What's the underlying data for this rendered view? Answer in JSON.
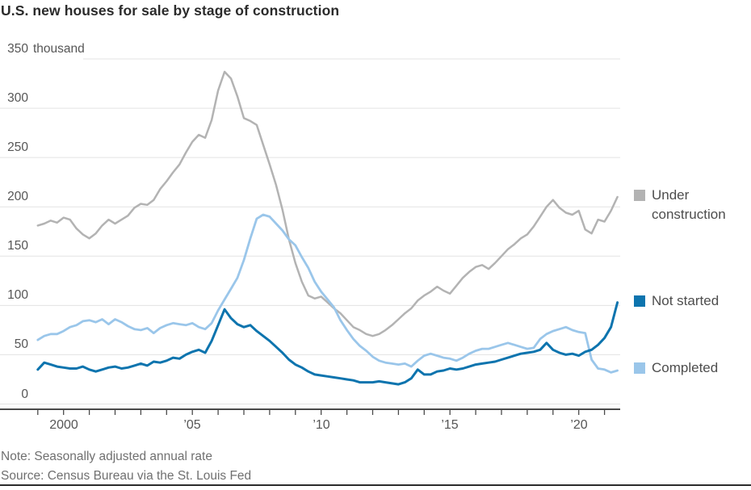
{
  "title": "U.S. new houses for sale by stage of construction",
  "note": "Note: Seasonally adjusted annual rate",
  "source": "Source: Census Bureau via the St. Louis Fed",
  "y_axis": {
    "unit_label": "thousand",
    "ticks": [
      350,
      300,
      250,
      200,
      150,
      100,
      50,
      0
    ]
  },
  "x_axis": {
    "labeled_ticks": [
      {
        "year": 2000,
        "label": "2000"
      },
      {
        "year": 2005,
        "label": "’05"
      },
      {
        "year": 2010,
        "label": "’10"
      },
      {
        "year": 2015,
        "label": "’15"
      },
      {
        "year": 2020,
        "label": "’20"
      }
    ],
    "minor_tick_start": 1999,
    "minor_tick_end": 2021
  },
  "colors": {
    "under_construction": "#b3b3b3",
    "not_started": "#0d74ae",
    "completed": "#9ac6ea",
    "gridline": "#e3e3e3",
    "axis": "#4a4a4a"
  },
  "chart_data": {
    "type": "line",
    "title": "U.S. new houses for sale by stage of construction",
    "ylabel": "thousand",
    "ylim": [
      0,
      350
    ],
    "x_start": 1999.0,
    "x_step": 0.25,
    "x_end": 2021.5,
    "grid": "horizontal",
    "legend_position": "right",
    "series": [
      {
        "name": "Under construction",
        "color": "#b3b3b3",
        "values": [
          181,
          183,
          186,
          184,
          189,
          187,
          178,
          172,
          168,
          173,
          181,
          187,
          183,
          187,
          191,
          199,
          203,
          202,
          207,
          218,
          226,
          235,
          243,
          255,
          266,
          273,
          270,
          288,
          318,
          337,
          330,
          312,
          290,
          287,
          283,
          263,
          243,
          222,
          197,
          167,
          143,
          124,
          110,
          107,
          109,
          103,
          97,
          92,
          85,
          78,
          75,
          71,
          69,
          71,
          75,
          80,
          86,
          92,
          97,
          105,
          110,
          114,
          119,
          115,
          112,
          120,
          128,
          134,
          139,
          141,
          137,
          143,
          150,
          157,
          162,
          168,
          172,
          180,
          190,
          200,
          207,
          199,
          194,
          192,
          196,
          177,
          173,
          187,
          185,
          196,
          210
        ]
      },
      {
        "name": "Not started",
        "color": "#0d74ae",
        "values": [
          35,
          42,
          40,
          38,
          37,
          36,
          36,
          38,
          35,
          33,
          35,
          37,
          38,
          36,
          37,
          39,
          41,
          39,
          43,
          42,
          44,
          47,
          46,
          50,
          53,
          55,
          52,
          64,
          80,
          96,
          87,
          81,
          78,
          80,
          74,
          69,
          64,
          58,
          52,
          45,
          40,
          37,
          33,
          30,
          29,
          28,
          27,
          26,
          25,
          24,
          22,
          22,
          22,
          23,
          22,
          21,
          20,
          22,
          26,
          35,
          30,
          30,
          33,
          34,
          36,
          35,
          36,
          38,
          40,
          41,
          42,
          43,
          45,
          47,
          49,
          51,
          52,
          53,
          55,
          62,
          55,
          52,
          50,
          51,
          49,
          53,
          55,
          60,
          67,
          78,
          103
        ]
      },
      {
        "name": "Completed",
        "color": "#9ac6ea",
        "values": [
          65,
          69,
          71,
          71,
          74,
          78,
          80,
          84,
          85,
          83,
          86,
          81,
          86,
          83,
          79,
          76,
          75,
          77,
          72,
          77,
          80,
          82,
          81,
          80,
          82,
          78,
          76,
          82,
          95,
          106,
          117,
          128,
          146,
          168,
          188,
          192,
          190,
          183,
          176,
          167,
          161,
          149,
          138,
          124,
          114,
          106,
          98,
          85,
          75,
          66,
          59,
          54,
          48,
          44,
          42,
          41,
          40,
          41,
          38,
          44,
          49,
          51,
          49,
          47,
          46,
          44,
          47,
          51,
          54,
          56,
          56,
          58,
          60,
          62,
          60,
          58,
          56,
          57,
          66,
          71,
          74,
          76,
          78,
          75,
          73,
          72,
          45,
          36,
          35,
          32,
          34
        ]
      }
    ]
  }
}
